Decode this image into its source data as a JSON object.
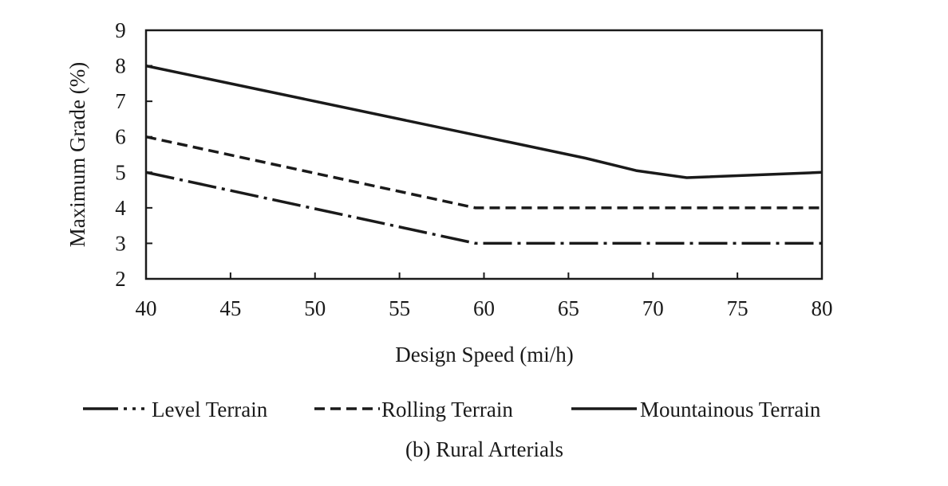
{
  "chart_data": {
    "type": "line",
    "title": "",
    "caption": "(b) Rural Arterials",
    "xlabel": "Design Speed (mi/h)",
    "ylabel": "Maximum Grade (%)",
    "xlim": [
      40,
      80
    ],
    "ylim": [
      2,
      9
    ],
    "xticks": [
      40,
      45,
      50,
      55,
      60,
      65,
      70,
      75,
      80
    ],
    "yticks": [
      2,
      3,
      4,
      5,
      6,
      7,
      8,
      9
    ],
    "grid": false,
    "legend_position": "bottom",
    "series": [
      {
        "name": "Level Terrain",
        "style": "dash-dot",
        "x": [
          40,
          59.5,
          80
        ],
        "y": [
          5,
          3,
          3
        ]
      },
      {
        "name": "Rolling Terrain",
        "style": "dashed",
        "x": [
          40,
          59.5,
          80
        ],
        "y": [
          6,
          4,
          4
        ]
      },
      {
        "name": "Mountainous Terrain",
        "style": "solid",
        "x": [
          40,
          60,
          66,
          69,
          72,
          80
        ],
        "y": [
          8,
          6,
          5.4,
          5.05,
          4.85,
          5
        ]
      }
    ]
  }
}
